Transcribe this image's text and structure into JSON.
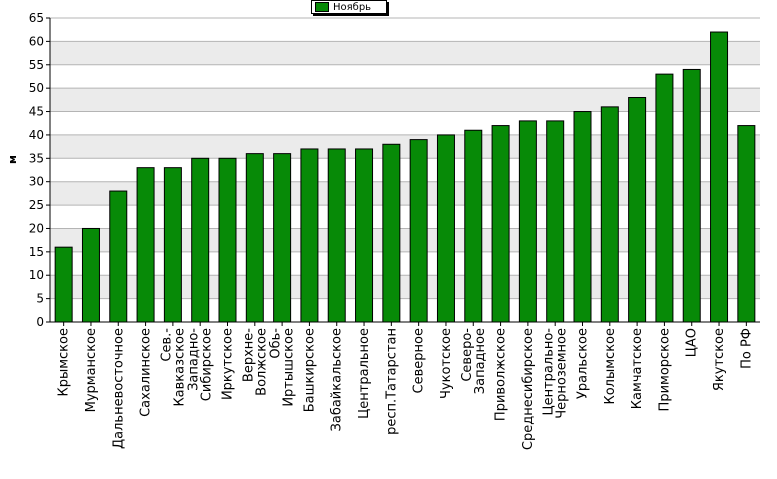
{
  "chart_data": {
    "type": "bar",
    "title": "",
    "xlabel": "",
    "ylabel": "м",
    "ylim": [
      0,
      65
    ],
    "yticks": [
      0,
      5,
      10,
      15,
      20,
      25,
      30,
      35,
      40,
      45,
      50,
      55,
      60,
      65
    ],
    "grid": true,
    "legend_position": "top-center",
    "bar_color": "#078a07",
    "categories": [
      "Крымское",
      "Мурманское",
      "Дальневосточное",
      "Сахалинское",
      "Сев.-Кавказское",
      "Западно-Сибирское",
      "Иркутское",
      "Верхне-Волжское",
      "Обь-Иртышское",
      "Башкирское",
      "Забайкальское",
      "Центральное",
      "респ.Татарстан",
      "Северное",
      "Чукотское",
      "Северо-Западное",
      "Приволжское",
      "Среднесибирское",
      "Центрально-Черноземное",
      "Уральское",
      "Колымское",
      "Камчатское",
      "Приморское",
      "ЦАО",
      "Якутское",
      "По РФ"
    ],
    "series": [
      {
        "name": "Ноябрь",
        "values": [
          16,
          20,
          28,
          33,
          33,
          35,
          35,
          36,
          36,
          37,
          37,
          37,
          38,
          39,
          40,
          41,
          42,
          43,
          43,
          45,
          46,
          48,
          53,
          54,
          62,
          42
        ]
      }
    ]
  }
}
